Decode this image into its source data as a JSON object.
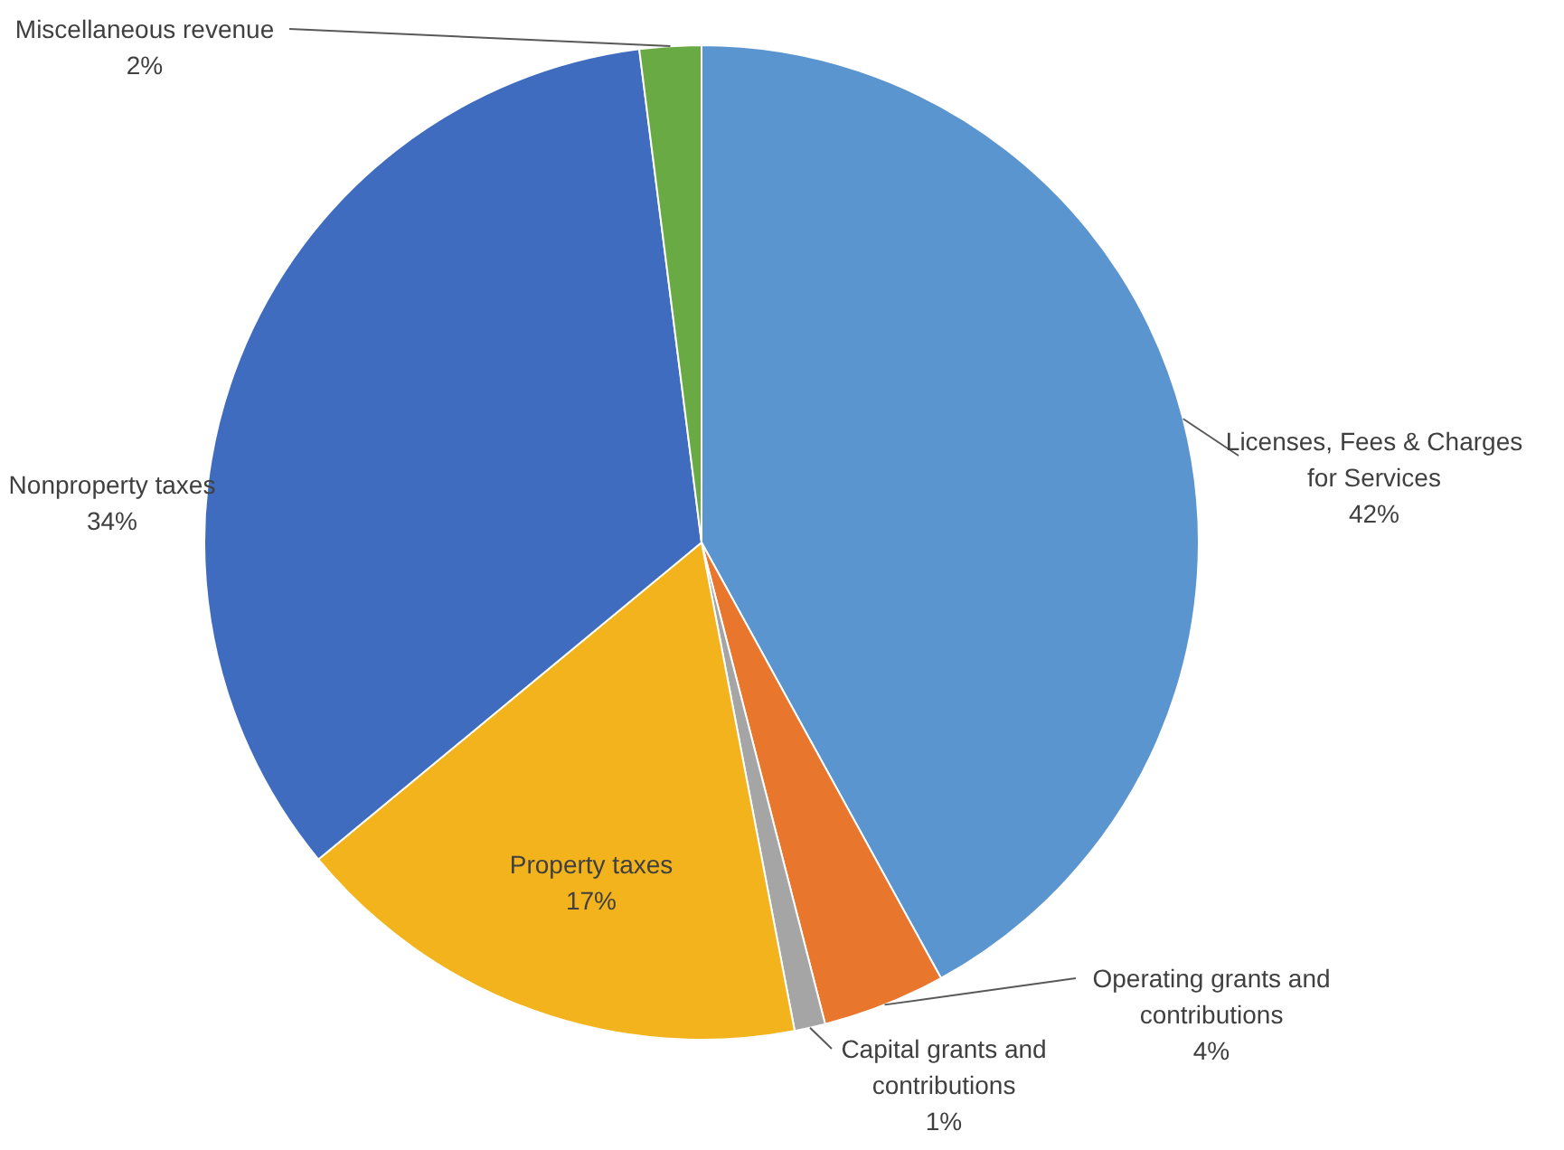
{
  "chart_data": {
    "type": "pie",
    "categories": [
      "Licenses, Fees & Charges for Services",
      "Operating grants and contributions",
      "Capital grants and contributions",
      "Property taxes",
      "Nonproperty taxes",
      "Miscellaneous revenue"
    ],
    "values": [
      42,
      4,
      1,
      17,
      34,
      2
    ],
    "value_labels": [
      "42%",
      "4%",
      "1%",
      "17%",
      "34%",
      "2%"
    ],
    "colors": [
      "#5b95d0",
      "#e9762d",
      "#a5a5a5",
      "#f2b31c",
      "#3f6cbf",
      "#6aaa45"
    ]
  }
}
